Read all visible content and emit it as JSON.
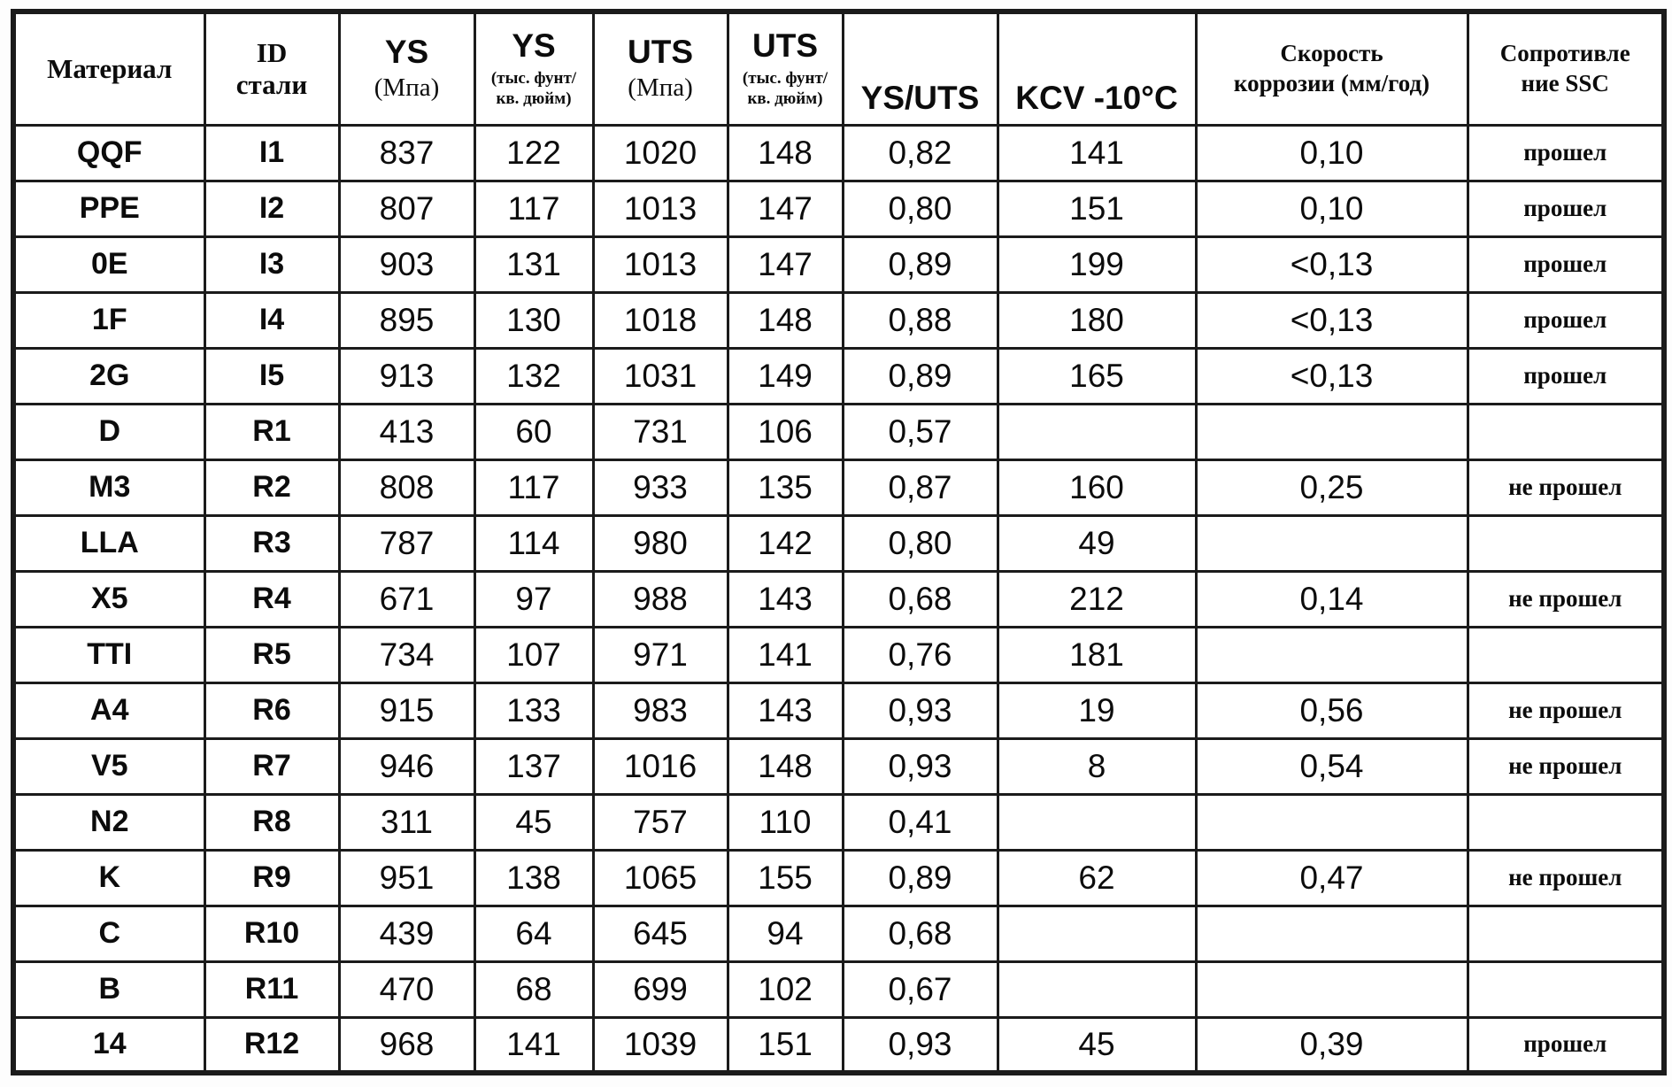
{
  "header": {
    "material": "Материал",
    "steel_id_line1": "ID",
    "steel_id_line2": "стали",
    "ys": "YS",
    "uts": "UTS",
    "mpa_unit": "(Мпа)",
    "ksi_unit_line1": "(тыс. фунт/",
    "ksi_unit_line2": "кв. дюйм)",
    "ys_uts": "YS/UTS",
    "kcv": "KCV -10°C",
    "corrosion_line1": "Скорость",
    "corrosion_line2": "коррозии (мм/год)",
    "ssc_line1": "Сопротивле",
    "ssc_line2": "ние SSC"
  },
  "rows": [
    {
      "material": "QQF",
      "steel_id": "I1",
      "ys_mpa": "837",
      "ys_ksi": "122",
      "uts_mpa": "1020",
      "uts_ksi": "148",
      "ys_uts": "0,82",
      "kcv": "141",
      "corrosion": "0,10",
      "ssc": "прошел"
    },
    {
      "material": "PPE",
      "steel_id": "I2",
      "ys_mpa": "807",
      "ys_ksi": "117",
      "uts_mpa": "1013",
      "uts_ksi": "147",
      "ys_uts": "0,80",
      "kcv": "151",
      "corrosion": "0,10",
      "ssc": "прошел"
    },
    {
      "material": "0E",
      "steel_id": "I3",
      "ys_mpa": "903",
      "ys_ksi": "131",
      "uts_mpa": "1013",
      "uts_ksi": "147",
      "ys_uts": "0,89",
      "kcv": "199",
      "corrosion": "<0,13",
      "ssc": "прошел"
    },
    {
      "material": "1F",
      "steel_id": "I4",
      "ys_mpa": "895",
      "ys_ksi": "130",
      "uts_mpa": "1018",
      "uts_ksi": "148",
      "ys_uts": "0,88",
      "kcv": "180",
      "corrosion": "<0,13",
      "ssc": "прошел"
    },
    {
      "material": "2G",
      "steel_id": "I5",
      "ys_mpa": "913",
      "ys_ksi": "132",
      "uts_mpa": "1031",
      "uts_ksi": "149",
      "ys_uts": "0,89",
      "kcv": "165",
      "corrosion": "<0,13",
      "ssc": "прошел"
    },
    {
      "material": "D",
      "steel_id": "R1",
      "ys_mpa": "413",
      "ys_ksi": "60",
      "uts_mpa": "731",
      "uts_ksi": "106",
      "ys_uts": "0,57",
      "kcv": "",
      "corrosion": "",
      "ssc": ""
    },
    {
      "material": "M3",
      "steel_id": "R2",
      "ys_mpa": "808",
      "ys_ksi": "117",
      "uts_mpa": "933",
      "uts_ksi": "135",
      "ys_uts": "0,87",
      "kcv": "160",
      "corrosion": "0,25",
      "ssc": "не прошел"
    },
    {
      "material": "LLA",
      "steel_id": "R3",
      "ys_mpa": "787",
      "ys_ksi": "114",
      "uts_mpa": "980",
      "uts_ksi": "142",
      "ys_uts": "0,80",
      "kcv": "49",
      "corrosion": "",
      "ssc": ""
    },
    {
      "material": "X5",
      "steel_id": "R4",
      "ys_mpa": "671",
      "ys_ksi": "97",
      "uts_mpa": "988",
      "uts_ksi": "143",
      "ys_uts": "0,68",
      "kcv": "212",
      "corrosion": "0,14",
      "ssc": "не прошел"
    },
    {
      "material": "TTI",
      "steel_id": "R5",
      "ys_mpa": "734",
      "ys_ksi": "107",
      "uts_mpa": "971",
      "uts_ksi": "141",
      "ys_uts": "0,76",
      "kcv": "181",
      "corrosion": "",
      "ssc": ""
    },
    {
      "material": "A4",
      "steel_id": "R6",
      "ys_mpa": "915",
      "ys_ksi": "133",
      "uts_mpa": "983",
      "uts_ksi": "143",
      "ys_uts": "0,93",
      "kcv": "19",
      "corrosion": "0,56",
      "ssc": "не прошел"
    },
    {
      "material": "V5",
      "steel_id": "R7",
      "ys_mpa": "946",
      "ys_ksi": "137",
      "uts_mpa": "1016",
      "uts_ksi": "148",
      "ys_uts": "0,93",
      "kcv": "8",
      "corrosion": "0,54",
      "ssc": "не прошел"
    },
    {
      "material": "N2",
      "steel_id": "R8",
      "ys_mpa": "311",
      "ys_ksi": "45",
      "uts_mpa": "757",
      "uts_ksi": "110",
      "ys_uts": "0,41",
      "kcv": "",
      "corrosion": "",
      "ssc": ""
    },
    {
      "material": "K",
      "steel_id": "R9",
      "ys_mpa": "951",
      "ys_ksi": "138",
      "uts_mpa": "1065",
      "uts_ksi": "155",
      "ys_uts": "0,89",
      "kcv": "62",
      "corrosion": "0,47",
      "ssc": "не прошел"
    },
    {
      "material": "C",
      "steel_id": "R10",
      "ys_mpa": "439",
      "ys_ksi": "64",
      "uts_mpa": "645",
      "uts_ksi": "94",
      "ys_uts": "0,68",
      "kcv": "",
      "corrosion": "",
      "ssc": ""
    },
    {
      "material": "B",
      "steel_id": "R11",
      "ys_mpa": "470",
      "ys_ksi": "68",
      "uts_mpa": "699",
      "uts_ksi": "102",
      "ys_uts": "0,67",
      "kcv": "",
      "corrosion": "",
      "ssc": ""
    },
    {
      "material": "14",
      "steel_id": "R12",
      "ys_mpa": "968",
      "ys_ksi": "141",
      "uts_mpa": "1039",
      "uts_ksi": "151",
      "ys_uts": "0,93",
      "kcv": "45",
      "corrosion": "0,39",
      "ssc": "прошел"
    }
  ]
}
